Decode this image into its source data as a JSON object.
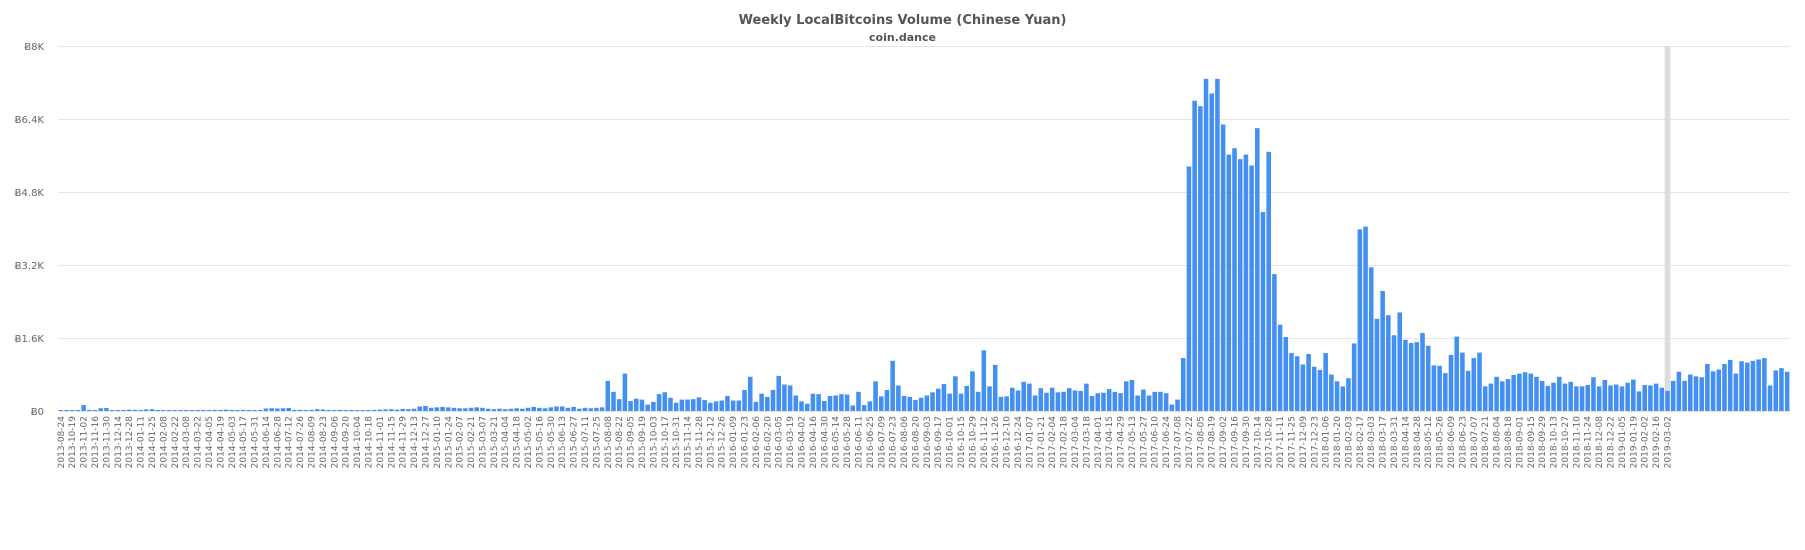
{
  "chart_data": {
    "type": "bar",
    "title": "Weekly LocalBitcoins Volume (Chinese Yuan)",
    "subtitle": "coin.dance",
    "xlabel": "",
    "ylabel": "",
    "ylim": [
      0,
      8000
    ],
    "y_ticks": [
      "Ƀ0",
      "Ƀ1.6K",
      "Ƀ3.2K",
      "Ƀ4.8K",
      "Ƀ6.4K",
      "Ƀ8K"
    ],
    "y_tick_values": [
      0,
      1600,
      3200,
      4800,
      6400,
      8000
    ],
    "grid": true,
    "legend": null,
    "bar_color": "#4390f2",
    "highlight_color": "#dddddd",
    "highlight_index": 282,
    "x_tick_labels": [
      "2013-08-24",
      "2013-10-19",
      "2013-11-02",
      "2013-11-16",
      "2013-11-30",
      "2013-12-14",
      "2013-12-28",
      "2014-01-11",
      "2014-01-25",
      "2014-02-08",
      "2014-02-22",
      "2014-03-08",
      "2014-03-22",
      "2014-04-05",
      "2014-04-19",
      "2014-05-03",
      "2014-05-17",
      "2014-05-31",
      "2014-06-14",
      "2014-06-28",
      "2014-07-12",
      "2014-07-26",
      "2014-08-09",
      "2014-08-23",
      "2014-09-06",
      "2014-09-20",
      "2014-10-04",
      "2014-10-18",
      "2014-11-01",
      "2014-11-15",
      "2014-11-29",
      "2014-12-13",
      "2014-12-27",
      "2015-01-10",
      "2015-01-24",
      "2015-02-07",
      "2015-02-21",
      "2015-03-07",
      "2015-03-21",
      "2015-04-04",
      "2015-04-18",
      "2015-05-02",
      "2015-05-16",
      "2015-05-30",
      "2015-06-13",
      "2015-06-27",
      "2015-07-11",
      "2015-07-25",
      "2015-08-08",
      "2015-08-22",
      "2015-09-05",
      "2015-09-19",
      "2015-10-03",
      "2015-10-17",
      "2015-10-31",
      "2015-11-14",
      "2015-11-28",
      "2015-12-12",
      "2015-12-26",
      "2016-01-09",
      "2016-01-23",
      "2016-02-06",
      "2016-02-20",
      "2016-03-05",
      "2016-03-19",
      "2016-04-02",
      "2016-04-16",
      "2016-04-30",
      "2016-05-14",
      "2016-05-28",
      "2016-06-11",
      "2016-06-25",
      "2016-07-09",
      "2016-07-23",
      "2016-08-06",
      "2016-08-20",
      "2016-09-03",
      "2016-09-17",
      "2016-10-01",
      "2016-10-15",
      "2016-10-29",
      "2016-11-12",
      "2016-11-26",
      "2016-12-10",
      "2016-12-24",
      "2017-01-07",
      "2017-01-21",
      "2017-02-04",
      "2017-02-18",
      "2017-03-04",
      "2017-03-18",
      "2017-04-01",
      "2017-04-15",
      "2017-04-29",
      "2017-05-13",
      "2017-05-27",
      "2017-06-10",
      "2017-06-24",
      "2017-07-08",
      "2017-07-22",
      "2017-08-05",
      "2017-08-19",
      "2017-09-02",
      "2017-09-16",
      "2017-09-30",
      "2017-10-14",
      "2017-10-28",
      "2017-11-11",
      "2017-11-25",
      "2017-12-09",
      "2017-12-23",
      "2018-01-06",
      "2018-01-20",
      "2018-02-03",
      "2018-02-17",
      "2018-03-03",
      "2018-03-17",
      "2018-03-31",
      "2018-04-14",
      "2018-04-28",
      "2018-05-12",
      "2018-05-26",
      "2018-06-09",
      "2018-06-23",
      "2018-07-07",
      "2018-07-21",
      "2018-08-04",
      "2018-08-18",
      "2018-09-01",
      "2018-09-15",
      "2018-09-29",
      "2018-10-13",
      "2018-10-27",
      "2018-11-10",
      "2018-11-24",
      "2018-12-08",
      "2018-12-22",
      "2019-01-05",
      "2019-01-19",
      "2019-02-02",
      "2019-02-16",
      "2019-03-02"
    ],
    "values": [
      10,
      5,
      20,
      15,
      130,
      25,
      20,
      60,
      65,
      15,
      20,
      10,
      30,
      25,
      15,
      35,
      40,
      10,
      15,
      5,
      10,
      10,
      20,
      15,
      10,
      20,
      20,
      25,
      20,
      30,
      25,
      20,
      25,
      15,
      20,
      20,
      55,
      60,
      55,
      60,
      65,
      25,
      25,
      20,
      25,
      40,
      35,
      20,
      15,
      25,
      15,
      15,
      20,
      15,
      15,
      25,
      30,
      35,
      40,
      30,
      45,
      40,
      50,
      100,
      110,
      70,
      80,
      90,
      80,
      70,
      60,
      60,
      70,
      80,
      70,
      50,
      40,
      50,
      40,
      50,
      60,
      50,
      70,
      90,
      70,
      60,
      80,
      100,
      100,
      70,
      90,
      50,
      70,
      60,
      70,
      80,
      660,
      420,
      260,
      820,
      220,
      270,
      250,
      140,
      200,
      370,
      410,
      290,
      180,
      250,
      250,
      260,
      300,
      240,
      180,
      210,
      230,
      330,
      230,
      230,
      460,
      750,
      200,
      380,
      310,
      460,
      770,
      580,
      560,
      340,
      210,
      160,
      380,
      370,
      220,
      330,
      340,
      370,
      360,
      120,
      420,
      130,
      210,
      650,
      320,
      460,
      1100,
      560,
      330,
      310,
      240,
      290,
      340,
      410,
      490,
      590,
      380,
      760,
      380,
      550,
      870,
      420,
      1330,
      540,
      1010,
      310,
      320,
      510,
      450,
      640,
      600,
      340,
      500,
      400,
      510,
      410,
      420,
      500,
      450,
      440,
      600,
      330,
      390,
      400,
      480,
      420,
      390,
      650,
      680,
      340,
      470,
      340,
      420,
      420,
      390,
      140,
      250,
      1160,
      5360,
      6800,
      6680,
      7280,
      6960,
      7280,
      6280,
      5620,
      5760,
      5520,
      5620,
      5380,
      6200,
      4360,
      5680,
      3000,
      1890,
      1620,
      1270,
      1200,
      1020,
      1250,
      970,
      900,
      1270,
      800,
      650,
      540,
      720,
      1480,
      3980,
      4040,
      3150,
      2020,
      2630,
      2100,
      1660,
      2160,
      1560,
      1490,
      1510,
      1710,
      1430,
      1000,
      990,
      830,
      1230,
      1630,
      1280,
      880,
      1160,
      1280,
      540,
      600,
      750,
      650,
      700,
      790,
      820,
      850,
      820,
      750,
      660,
      550,
      620,
      750,
      600,
      640,
      540,
      540,
      570,
      740,
      540,
      680,
      560,
      580,
      540,
      620,
      690,
      430,
      570,
      560,
      600,
      510,
      440,
      660,
      860,
      660,
      800,
      760,
      740,
      1030,
      870,
      910,
      1030,
      1120,
      820,
      1090,
      1060,
      1100,
      1130,
      1160,
      560,
      890,
      940,
      860
    ]
  }
}
